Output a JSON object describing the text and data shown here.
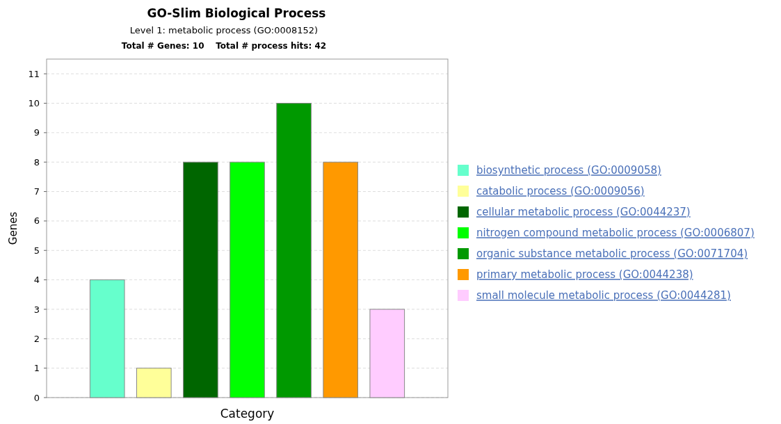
{
  "chart_data": {
    "type": "bar",
    "title": "GO-Slim Biological Process",
    "subtitle": "Level 1: metabolic process (GO:0008152)",
    "annotations": [
      "Total # Genes: 10    Total # process hits: 42"
    ],
    "xlabel": "Category",
    "ylabel": "Genes",
    "categories": [
      null
    ],
    "series": [
      {
        "name": "biosynthetic process (GO:0009058)",
        "color": "#66ffcc",
        "values": [
          4
        ]
      },
      {
        "name": "catabolic process (GO:0009056)",
        "color": "#ffff99",
        "values": [
          1
        ]
      },
      {
        "name": "cellular metabolic process (GO:0044237)",
        "color": "#006600",
        "values": [
          8
        ]
      },
      {
        "name": "nitrogen compound metabolic process (GO:0006807)",
        "color": "#00ff00",
        "values": [
          8
        ]
      },
      {
        "name": "organic substance metabolic process (GO:0071704)",
        "color": "#009900",
        "values": [
          10
        ]
      },
      {
        "name": "primary metabolic process (GO:0044238)",
        "color": "#ff9900",
        "values": [
          8
        ]
      },
      {
        "name": "small molecule metabolic process (GO:0044281)",
        "color": "#ffccff",
        "values": [
          3
        ]
      }
    ],
    "ylim": [
      0,
      11.5
    ],
    "yticks": [
      0,
      1,
      2,
      3,
      4,
      5,
      6,
      7,
      8,
      9,
      10,
      11
    ],
    "grid": "y",
    "legend": "right"
  }
}
